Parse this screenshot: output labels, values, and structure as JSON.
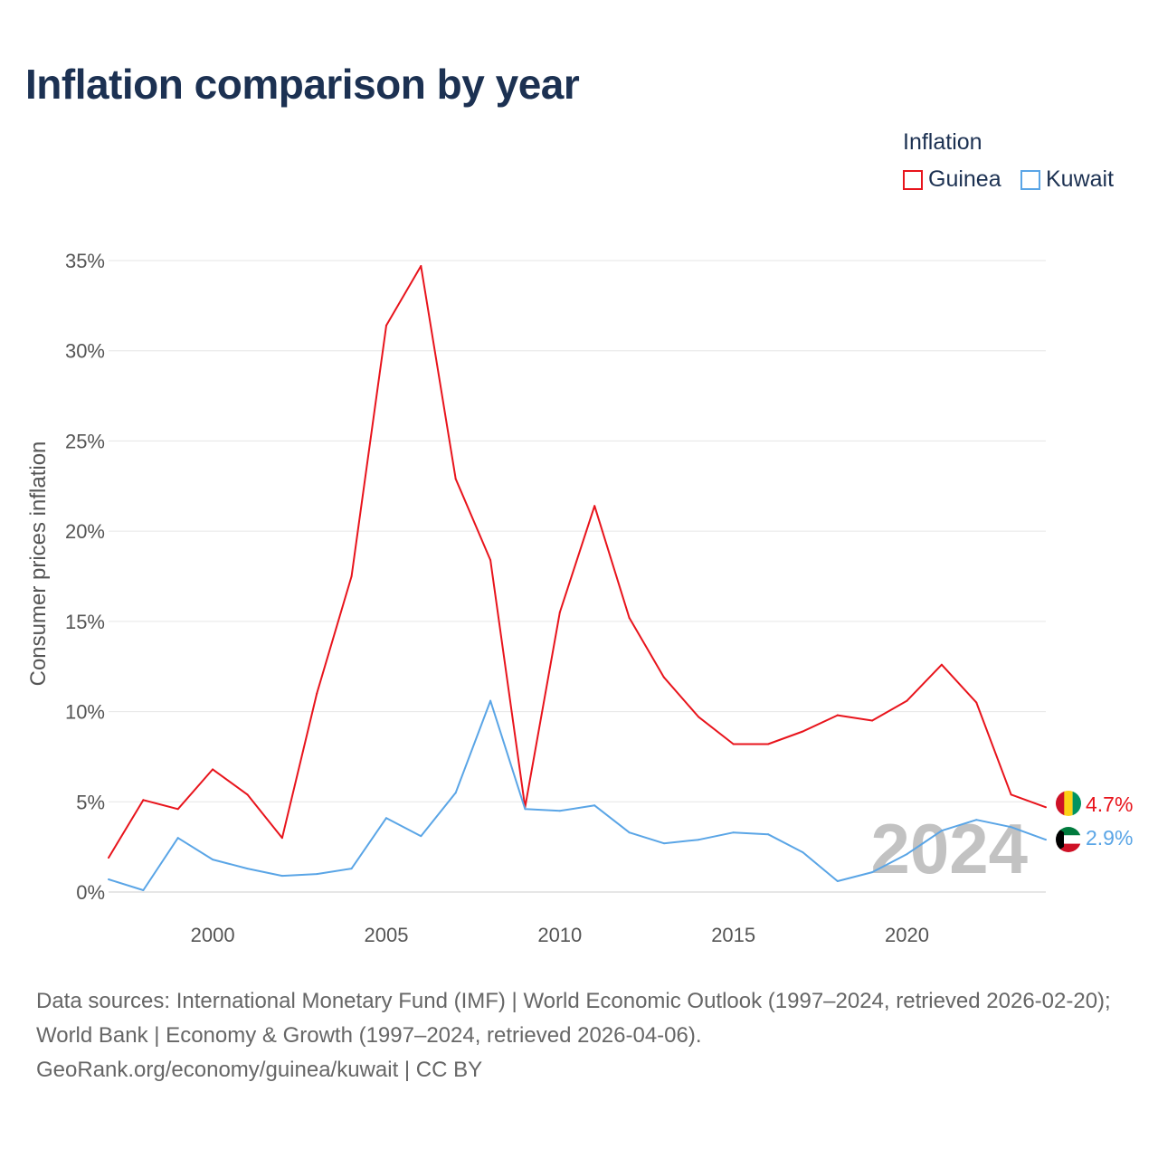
{
  "title": "Inflation comparison by year",
  "legend": {
    "heading": "Inflation",
    "items": [
      {
        "label": "Guinea",
        "color": "#e8141c"
      },
      {
        "label": "Kuwait",
        "color": "#5aa5e6"
      }
    ]
  },
  "chart_data": {
    "type": "line",
    "title": "Inflation comparison by year",
    "xlabel": "",
    "ylabel": "Consumer prices inflation",
    "x": [
      1997,
      1998,
      1999,
      2000,
      2001,
      2002,
      2003,
      2004,
      2005,
      2006,
      2007,
      2008,
      2009,
      2010,
      2011,
      2012,
      2013,
      2014,
      2015,
      2016,
      2017,
      2018,
      2019,
      2020,
      2021,
      2022,
      2023,
      2024
    ],
    "xlim": [
      1997,
      2024
    ],
    "ylim": [
      0,
      35
    ],
    "x_ticks": [
      2000,
      2005,
      2010,
      2015,
      2020
    ],
    "y_ticks": [
      0,
      5,
      10,
      15,
      20,
      25,
      30,
      35
    ],
    "y_tick_labels": [
      "0%",
      "5%",
      "10%",
      "15%",
      "20%",
      "25%",
      "30%",
      "35%"
    ],
    "grid": true,
    "legend_position": "top-right",
    "series": [
      {
        "name": "Guinea",
        "color": "#e8141c",
        "values": [
          1.9,
          5.1,
          4.6,
          6.8,
          5.4,
          3.0,
          11.0,
          17.5,
          31.4,
          34.7,
          22.9,
          18.4,
          4.7,
          15.5,
          21.4,
          15.2,
          11.9,
          9.7,
          8.2,
          8.2,
          8.9,
          9.8,
          9.5,
          10.6,
          12.6,
          10.5,
          5.4,
          4.7
        ],
        "end_label": "4.7%"
      },
      {
        "name": "Kuwait",
        "color": "#5aa5e6",
        "values": [
          0.7,
          0.1,
          3.0,
          1.8,
          1.3,
          0.9,
          1.0,
          1.3,
          4.1,
          3.1,
          5.5,
          10.6,
          4.6,
          4.5,
          4.8,
          3.3,
          2.7,
          2.9,
          3.3,
          3.2,
          2.2,
          0.6,
          1.1,
          2.1,
          3.4,
          4.0,
          3.6,
          2.9
        ],
        "end_label": "2.9%"
      }
    ],
    "annotation": "2024"
  },
  "source": {
    "line1": "Data sources: International Monetary Fund (IMF) | World Economic Outlook (1997–2024, retrieved 2026-02-20); World Bank | Economy & Growth (1997–2024, retrieved 2026-04-06).",
    "line2": "GeoRank.org/economy/guinea/kuwait | CC BY"
  }
}
